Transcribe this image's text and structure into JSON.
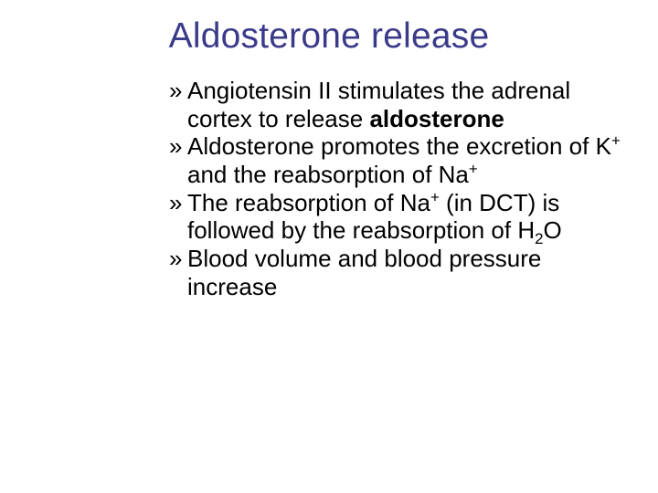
{
  "slide": {
    "title": "Aldosterone release",
    "title_color": "#3a3a8a",
    "title_fontsize": 39,
    "bullet_marker": "»",
    "body_color": "#000000",
    "body_fontsize": 26,
    "background_color": "#ffffff",
    "bullets": [
      {
        "html": "Angiotensin II stimulates the adrenal cortex to release <b>aldosterone</b>"
      },
      {
        "html": "Aldosterone promotes the excretion of K<sup>+</sup> and the reabsorption of Na<sup>+</sup>"
      },
      {
        "html": "The reabsorption of Na<sup>+</sup> (in DCT) is followed by the reabsorption of H<sub>2</sub>O"
      },
      {
        "html": "Blood volume and blood pressure increase"
      }
    ]
  }
}
